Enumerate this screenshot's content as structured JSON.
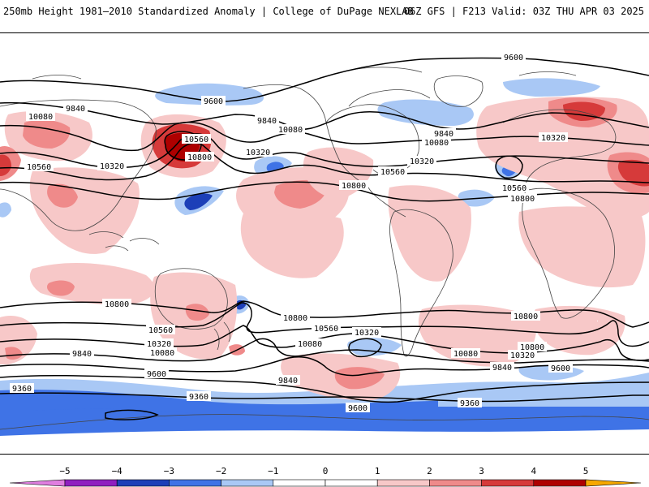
{
  "header": {
    "title": "250mb Height 1981–2010 Standardized Anomaly | College of DuPage NEXLAB",
    "run_info": "06Z GFS | F213 Valid: 03Z THU APR 03 2025"
  },
  "contour_labels": [
    {
      "text": "9600",
      "key": "c9600a"
    },
    {
      "text": "9600",
      "key": "c9600b"
    },
    {
      "text": "9840",
      "key": "c9840a"
    },
    {
      "text": "9840",
      "key": "c9840b"
    },
    {
      "text": "9840",
      "key": "c9840c"
    },
    {
      "text": "10080",
      "key": "c10080a"
    },
    {
      "text": "10080",
      "key": "c10080b"
    },
    {
      "text": "10080",
      "key": "c10080c"
    },
    {
      "text": "10560",
      "key": "c10560a"
    },
    {
      "text": "10560",
      "key": "c10560b"
    },
    {
      "text": "10560",
      "key": "c10560c"
    },
    {
      "text": "10560",
      "key": "c10560d"
    },
    {
      "text": "10320",
      "key": "c10320a"
    },
    {
      "text": "10320",
      "key": "c10320b"
    },
    {
      "text": "10320",
      "key": "c10320c"
    },
    {
      "text": "10320",
      "key": "c10320d"
    },
    {
      "text": "10800",
      "key": "c10800a"
    },
    {
      "text": "10800",
      "key": "c10800b"
    },
    {
      "text": "10800",
      "key": "c10800c"
    },
    {
      "text": "10800",
      "key": "c10800d"
    },
    {
      "text": "10800",
      "key": "c10800e"
    },
    {
      "text": "10560",
      "key": "s10560a"
    },
    {
      "text": "10560",
      "key": "s10560b"
    },
    {
      "text": "10320",
      "key": "s10320a"
    },
    {
      "text": "10320",
      "key": "s10320b"
    },
    {
      "text": "10320",
      "key": "s10320c"
    },
    {
      "text": "10080",
      "key": "s10080a"
    },
    {
      "text": "10080",
      "key": "s10080b"
    },
    {
      "text": "10080",
      "key": "s10080c"
    },
    {
      "text": "9840",
      "key": "s9840a"
    },
    {
      "text": "9840",
      "key": "s9840b"
    },
    {
      "text": "9840",
      "key": "s9840c"
    },
    {
      "text": "9600",
      "key": "s9600a"
    },
    {
      "text": "9600",
      "key": "s9600b"
    },
    {
      "text": "9600",
      "key": "s9600c"
    },
    {
      "text": "9360",
      "key": "s9360a"
    },
    {
      "text": "9360",
      "key": "s9360b"
    },
    {
      "text": "9360",
      "key": "s9360c"
    },
    {
      "text": "10800",
      "key": "s10800a"
    },
    {
      "text": "10800",
      "key": "s10800b"
    },
    {
      "text": "10800",
      "key": "s10800c"
    }
  ],
  "colorbar": {
    "ticks": [
      "−5",
      "−4",
      "−3",
      "−2",
      "−1",
      "0",
      "1",
      "2",
      "3",
      "4",
      "5"
    ],
    "colors": {
      "lt_neg5": "#e07ee0",
      "neg5_neg4": "#8f1fc0",
      "neg4_neg3": "#1c3fb8",
      "neg3_neg2": "#3f73e6",
      "neg2_neg1": "#a9c8f5",
      "neg1_0": "#ffffff",
      "0_1": "#ffffff",
      "1_2": "#f7c8c8",
      "2_3": "#ef8a8a",
      "3_4": "#d63a3a",
      "4_5": "#ae0000",
      "gt_5": "#f6a800"
    }
  }
}
